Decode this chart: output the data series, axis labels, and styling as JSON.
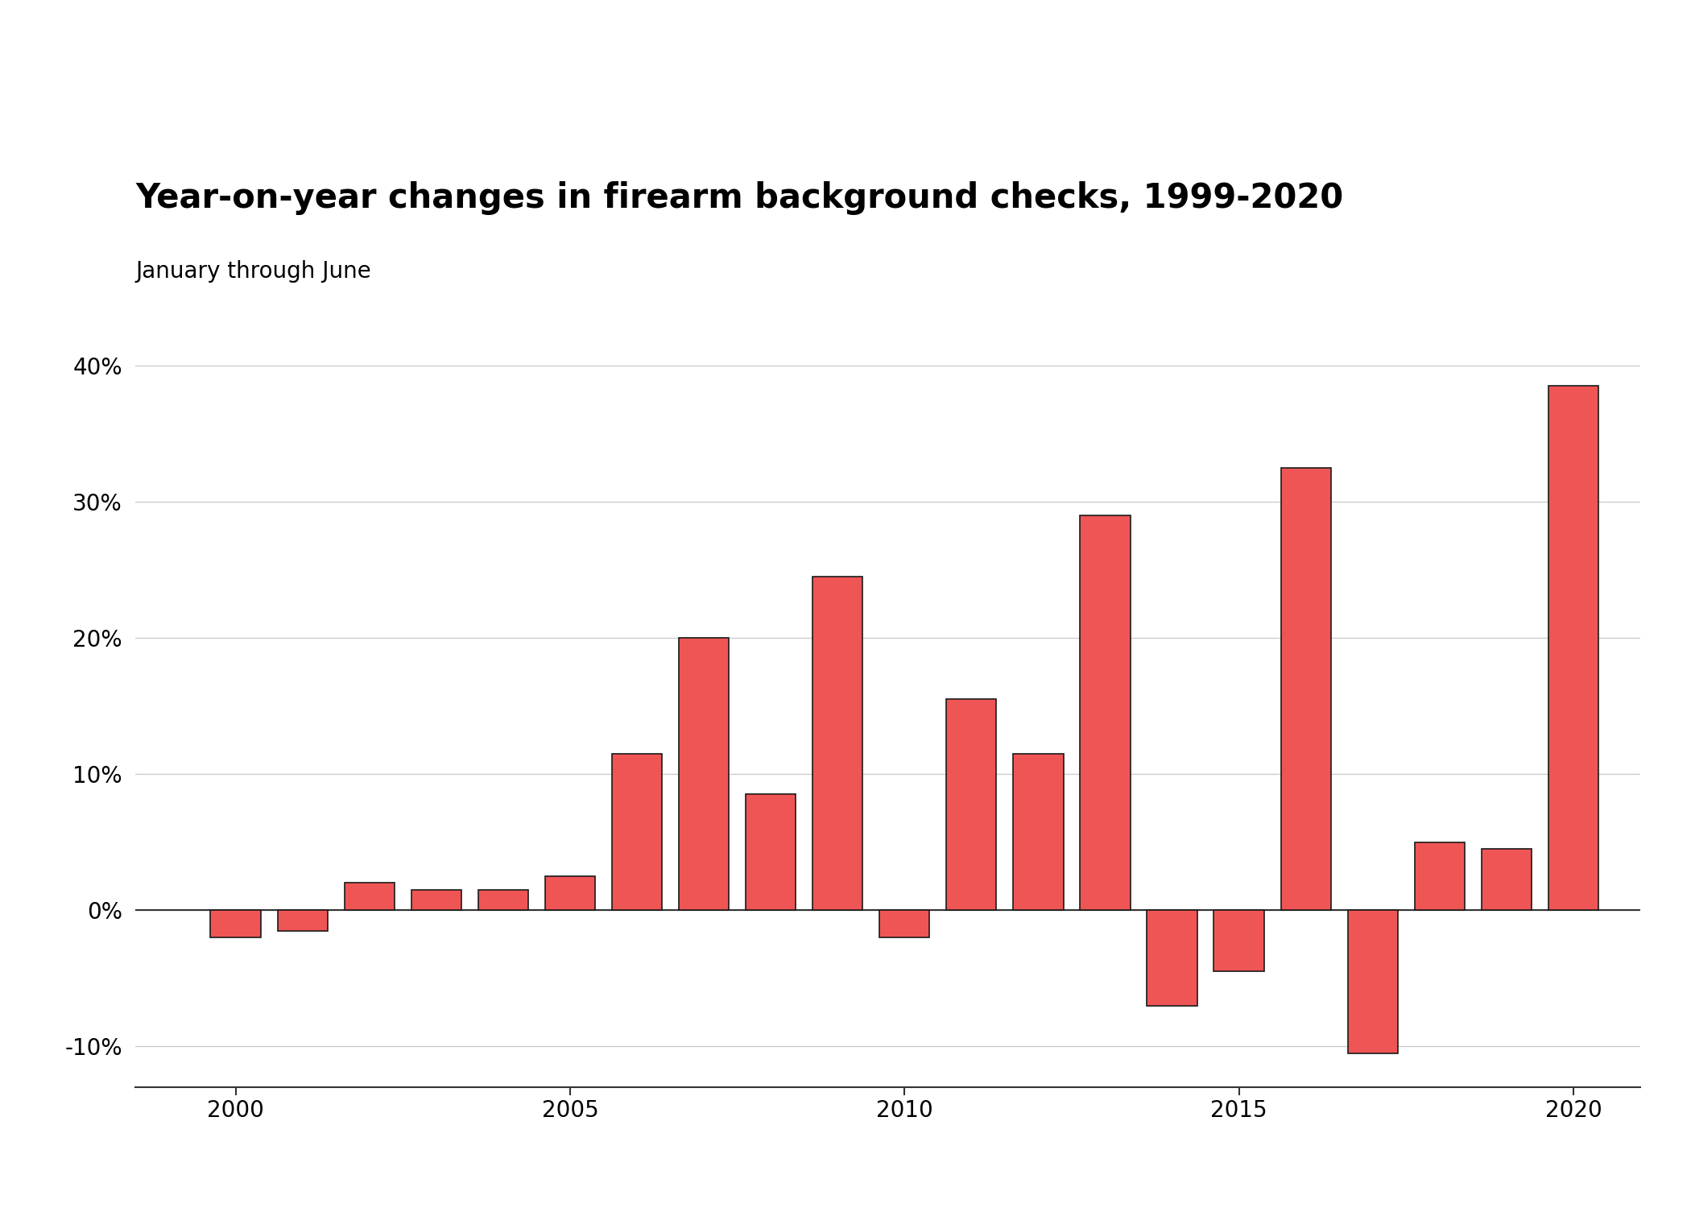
{
  "title": "Year-on-year changes in firearm background checks, 1999-2020",
  "subtitle": "January through June",
  "years": [
    2000,
    2001,
    2002,
    2003,
    2004,
    2005,
    2006,
    2007,
    2008,
    2009,
    2010,
    2011,
    2012,
    2013,
    2014,
    2015,
    2016,
    2017,
    2018,
    2019,
    2020
  ],
  "values": [
    -2.0,
    -1.5,
    2.0,
    1.5,
    1.5,
    2.5,
    11.5,
    20.0,
    8.5,
    24.5,
    -2.0,
    15.5,
    11.5,
    29.0,
    -7.0,
    -4.5,
    32.5,
    -10.5,
    5.0,
    4.5,
    38.5
  ],
  "bar_color": "#f05555",
  "bar_edge_color": "#1a1a1a",
  "background_color": "#ffffff",
  "ylim": [
    -13,
    42
  ],
  "yticks": [
    -10,
    0,
    10,
    20,
    30,
    40
  ],
  "ytick_labels": [
    "-10%",
    "0%",
    "10%",
    "20%",
    "30%",
    "40%"
  ],
  "xticks": [
    2000,
    2005,
    2010,
    2015,
    2020
  ],
  "grid_color": "#cccccc",
  "title_fontsize": 30,
  "subtitle_fontsize": 20,
  "tick_fontsize": 20
}
